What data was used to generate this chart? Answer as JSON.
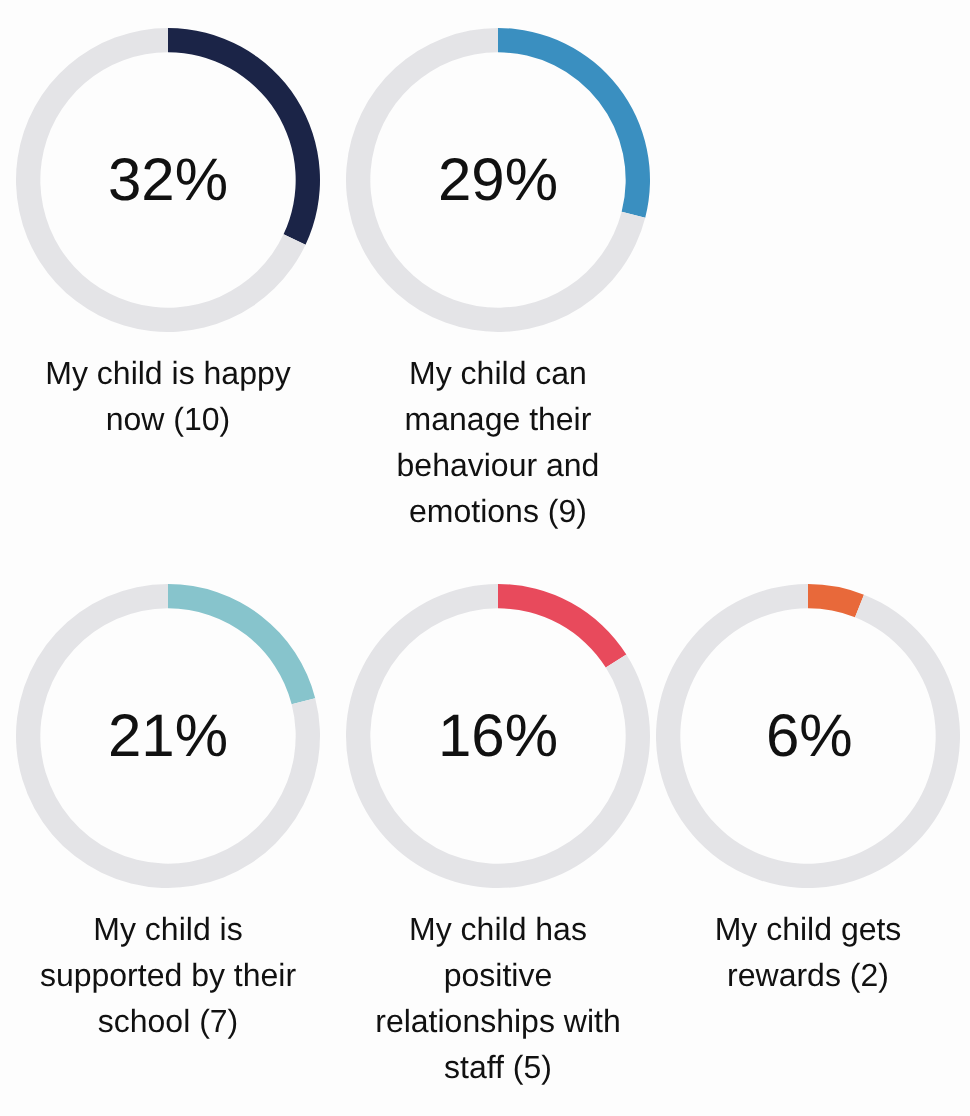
{
  "chart_data": [
    {
      "type": "donut",
      "title": "My child is happy now (10)",
      "categories": [
        null,
        null
      ],
      "values": [
        32,
        68
      ],
      "colors": [
        "#1b2447",
        "#e4e4e7"
      ],
      "annotations": [
        "32%"
      ]
    },
    {
      "type": "donut",
      "title": "My child can manage their behaviour and emotions (9)",
      "categories": [
        null,
        null
      ],
      "values": [
        29,
        71
      ],
      "colors": [
        "#3a8fc0",
        "#e4e4e7"
      ],
      "annotations": [
        "29%"
      ]
    },
    {
      "type": "donut",
      "title": "My child is supported by their school (7)",
      "categories": [
        null,
        null
      ],
      "values": [
        21,
        79
      ],
      "colors": [
        "#87c4cc",
        "#e4e4e7"
      ],
      "annotations": [
        "21%"
      ]
    },
    {
      "type": "donut",
      "title": "My child has positive relationships with staff (5)",
      "categories": [
        null,
        null
      ],
      "values": [
        16,
        84
      ],
      "colors": [
        "#e84a5c",
        "#e4e4e7"
      ],
      "annotations": [
        "16%"
      ]
    },
    {
      "type": "donut",
      "title": "My child gets rewards (2)",
      "categories": [
        null,
        null
      ],
      "values": [
        6,
        94
      ],
      "colors": [
        "#e8693a",
        "#e4e4e7"
      ],
      "annotations": [
        "6%"
      ]
    }
  ]
}
